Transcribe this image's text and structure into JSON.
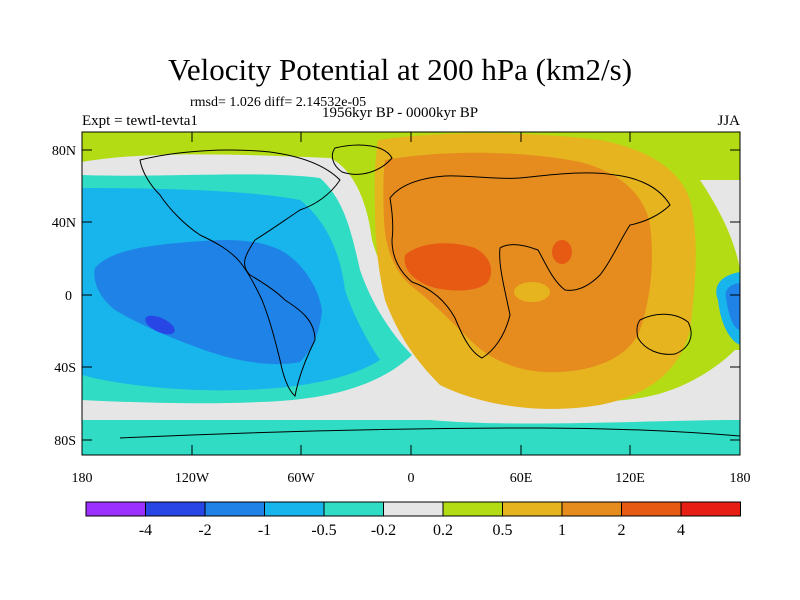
{
  "title": "Velocity Potential at 200 hPa (km2/s)",
  "stats_line": "rmsd= 1.026 diff= 2.14532e-05",
  "experiment": "Expt = tewtl-tevta1",
  "period": "1956kyr BP - 0000kyr BP",
  "season": "JJA",
  "lat_labels": [
    "80N",
    "40N",
    "0",
    "40S",
    "80S"
  ],
  "lon_labels": [
    "180",
    "120W",
    "60W",
    "0",
    "60E",
    "120E",
    "180"
  ],
  "colorbar": {
    "colors": [
      "#9b30ff",
      "#2846e6",
      "#1e82e6",
      "#18b4ec",
      "#30dcc4",
      "#e6e6e6",
      "#b4dc14",
      "#e6b41e",
      "#e68c1e",
      "#e65a14",
      "#e61e14"
    ],
    "labels": [
      "-4",
      "-2",
      "-1",
      "-0.5",
      "-0.2",
      "0.2",
      "0.5",
      "1",
      "2",
      "4"
    ]
  }
}
